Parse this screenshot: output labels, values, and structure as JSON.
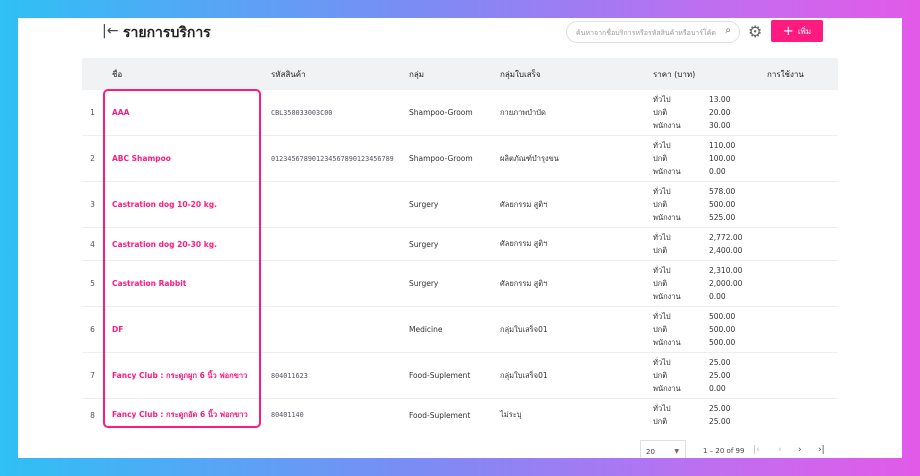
{
  "header": {
    "title": "รายการบริการ",
    "search_placeholder": "ค้นหาจากชื่อบริการหรือรหัสสินค้าหรือบาร์โค้ด",
    "add_label": "เพิ่ม"
  },
  "columns": [
    "ชื่อ",
    "รหัสสินค้า",
    "กลุ่ม",
    "กลุ่มใบเสร็จ",
    "ราคา (บาท)",
    "การใช้งาน"
  ],
  "rows": [
    {
      "no": "1",
      "name": "AAA",
      "code": "CBL350033003C00",
      "group": "Shampoo-Groom",
      "receipt_group": "กายภาพบำบัด",
      "prices": [
        [
          "ทั่วไป",
          "13.00"
        ],
        [
          "ปกติ",
          "20.00"
        ],
        [
          "พนักงาน",
          "30.00"
        ]
      ]
    },
    {
      "no": "2",
      "name": "ABC Shampoo",
      "code": "012345678901234567890123456789",
      "group": "Shampoo-Groom",
      "receipt_group": "ผลิตภัณฑ์บำรุงขน",
      "prices": [
        [
          "ทั่วไป",
          "110.00"
        ],
        [
          "ปกติ",
          "100.00"
        ],
        [
          "พนักงาน",
          "0.00"
        ]
      ]
    },
    {
      "no": "3",
      "name": "Castration dog 10-20 kg.",
      "code": "",
      "group": "Surgery",
      "receipt_group": "ศัลยกรรม สูติฯ",
      "prices": [
        [
          "ทั่วไป",
          "578.00"
        ],
        [
          "ปกติ",
          "500.00"
        ],
        [
          "พนักงาน",
          "525.00"
        ]
      ]
    },
    {
      "no": "4",
      "name": "Castration dog 20-30 kg.",
      "code": "",
      "group": "Surgery",
      "receipt_group": "ศัลยกรรม สูติฯ",
      "prices": [
        [
          "ทั่วไป",
          "2,772.00"
        ],
        [
          "ปกติ",
          "2,400.00"
        ]
      ]
    },
    {
      "no": "5",
      "name": "Castration Rabbit",
      "code": "",
      "group": "Surgery",
      "receipt_group": "ศัลยกรรม สูติฯ",
      "prices": [
        [
          "ทั่วไป",
          "2,310.00"
        ],
        [
          "ปกติ",
          "2,000.00"
        ],
        [
          "พนักงาน",
          "0.00"
        ]
      ]
    },
    {
      "no": "6",
      "name": "DF",
      "code": "",
      "group": "Medicine",
      "receipt_group": "กลุ่มใบเสร็จ01",
      "prices": [
        [
          "ทั่วไป",
          "500.00"
        ],
        [
          "ปกติ",
          "500.00"
        ],
        [
          "พนักงาน",
          "500.00"
        ]
      ]
    },
    {
      "no": "7",
      "name": "Fancy Club : กระดูกผูก 6 นิ้ว ฟอกขาว",
      "code": "804011623",
      "group": "Food-Suplement",
      "receipt_group": "กลุ่มใบเสร็จ01",
      "prices": [
        [
          "ทั่วไป",
          "25.00"
        ],
        [
          "ปกติ",
          "25.00"
        ],
        [
          "พนักงาน",
          "0.00"
        ]
      ]
    },
    {
      "no": "8",
      "name": "Fancy Club : กระดูกอัด 6 นิ้ว ฟอกขาว",
      "code": "80401140",
      "group": "Food-Suplement",
      "receipt_group": "ไม่ระบุ",
      "prices": [
        [
          "ทั่วไป",
          "25.00"
        ],
        [
          "ปกติ",
          "25.00"
        ]
      ]
    }
  ],
  "pagination": {
    "page_size": "20",
    "range": "1 – 20 of 99"
  },
  "colors": {
    "accent": "#ff1a7f",
    "header_bg": "#f1f2f4"
  }
}
